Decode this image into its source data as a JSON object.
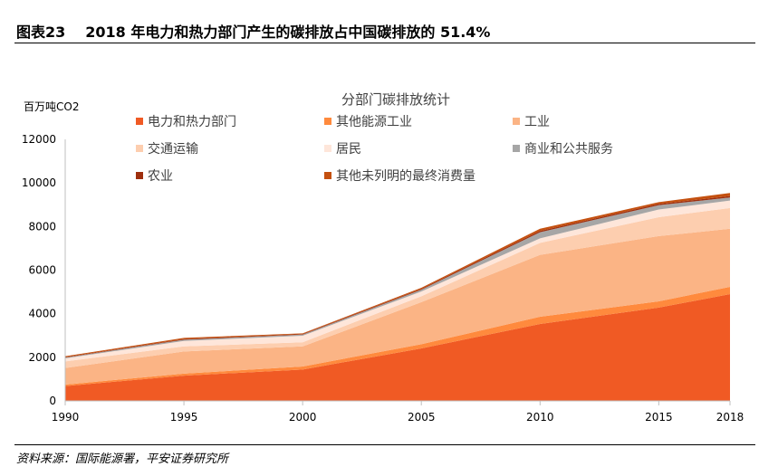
{
  "header": {
    "figure_no": "图表23",
    "title": "2018 年电力和热力部门产生的碳排放占中国碳排放的 51.4%"
  },
  "source": "资料来源：国际能源署，平安证券研究所",
  "chart_data": {
    "type": "area",
    "stacked": true,
    "title": "分部门碳排放统计",
    "ylabel": "百万吨CO2",
    "xlabel": "",
    "x": [
      1990,
      1995,
      2000,
      2005,
      2010,
      2015,
      2018
    ],
    "ylim": [
      0,
      12000
    ],
    "yticks": [
      0,
      2000,
      4000,
      6000,
      8000,
      10000,
      12000
    ],
    "grid": false,
    "legend": "top",
    "series": [
      {
        "name": "电力和热力部门",
        "color": "#F05A24",
        "values": [
          680,
          1160,
          1440,
          2410,
          3530,
          4280,
          4900
        ]
      },
      {
        "name": "其他能源工业",
        "color": "#FF8A3D",
        "values": [
          70,
          90,
          140,
          190,
          330,
          290,
          330
        ]
      },
      {
        "name": "工业",
        "color": "#FBB485",
        "values": [
          760,
          1020,
          920,
          1930,
          2840,
          2990,
          2670
        ]
      },
      {
        "name": "交通运输",
        "color": "#FDCEAF",
        "values": [
          300,
          230,
          190,
          270,
          550,
          870,
          950
        ]
      },
      {
        "name": "居民",
        "color": "#FEE6DA",
        "values": [
          140,
          250,
          300,
          220,
          210,
          350,
          340
        ]
      },
      {
        "name": "商业和公共服务",
        "color": "#A6A6A6",
        "values": [
          40,
          60,
          50,
          80,
          280,
          200,
          140
        ]
      },
      {
        "name": "农业",
        "color": "#9E2F0E",
        "values": [
          20,
          30,
          30,
          40,
          60,
          60,
          70
        ]
      },
      {
        "name": "其他未列明的最终消费量",
        "color": "#C4500F",
        "values": [
          40,
          50,
          30,
          50,
          100,
          80,
          140
        ]
      }
    ]
  }
}
